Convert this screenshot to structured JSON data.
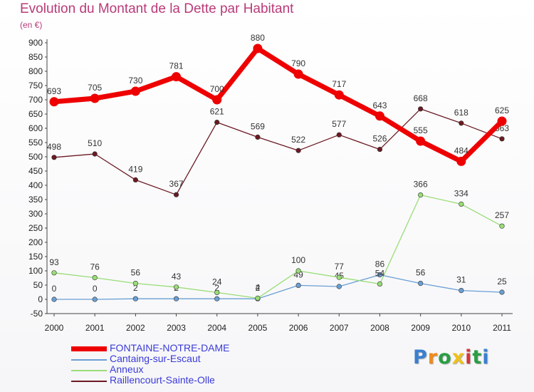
{
  "chart_data": {
    "type": "line",
    "title": "Evolution du Montant de la Dette par Habitant",
    "subtitle": "(en €)",
    "xlabel": "",
    "ylabel": "",
    "x": [
      "2000",
      "2001",
      "2002",
      "2003",
      "2004",
      "2005",
      "2006",
      "2007",
      "2008",
      "2009",
      "2010",
      "2011"
    ],
    "ylim": [
      -50,
      900
    ],
    "yticks": [
      -50,
      0,
      50,
      100,
      150,
      200,
      250,
      300,
      350,
      400,
      450,
      500,
      550,
      600,
      650,
      700,
      750,
      800,
      850,
      900
    ],
    "grid": false,
    "legend": "bottom-left",
    "series": [
      {
        "name": "Cantaing-sur-Escaut",
        "color": "#6a9fd4",
        "values": [
          0,
          0,
          2,
          2,
          2,
          2,
          49,
          45,
          86,
          56,
          31,
          25
        ]
      },
      {
        "name": "Anneux",
        "color": "#99dd77",
        "values": [
          93,
          76,
          56,
          43,
          24,
          4,
          100,
          77,
          54,
          366,
          334,
          257
        ]
      },
      {
        "name": "Raillencourt-Sainte-Olle",
        "color": "#6b1a22",
        "values": [
          498,
          510,
          419,
          367,
          621,
          569,
          522,
          577,
          526,
          668,
          618,
          563
        ]
      },
      {
        "name": "FONTAINE-NOTRE-DAME",
        "color": "#ee0000",
        "values": [
          693,
          705,
          730,
          781,
          700,
          880,
          790,
          717,
          643,
          555,
          484,
          625
        ]
      }
    ],
    "legend_order": [
      "FONTAINE-NOTRE-DAME",
      "Cantaing-sur-Escaut",
      "Anneux",
      "Raillencourt-Sainte-Olle"
    ]
  },
  "brand": {
    "letters": [
      "P",
      "r",
      "o",
      "x",
      "i",
      "t",
      "i"
    ],
    "colors": [
      "#3a7fd0",
      "#f08a1c",
      "#2a9e44",
      "#f0c01c",
      "#d8343a",
      "#2a9e44",
      "#3a7fd0"
    ]
  }
}
